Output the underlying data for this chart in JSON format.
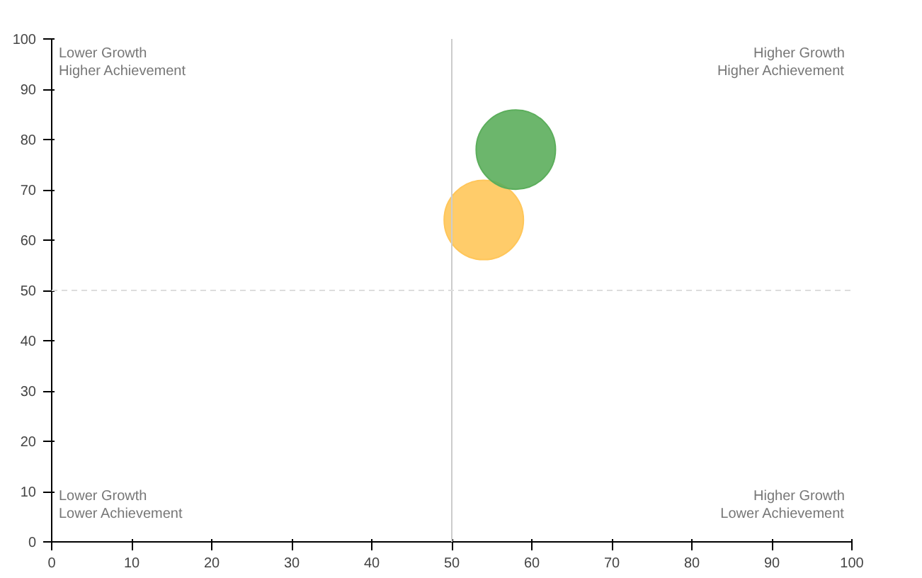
{
  "chart_data": {
    "type": "bubble",
    "series": [
      {
        "color": "#ffc65a",
        "x": [
          54
        ],
        "values": [
          64
        ],
        "sizes": [
          1
        ]
      },
      {
        "color": "#5cae5c",
        "x": [
          58
        ],
        "values": [
          78
        ],
        "sizes": [
          1
        ]
      }
    ],
    "xlim": [
      0,
      100
    ],
    "ylim": [
      0,
      100
    ],
    "xticks": [
      0,
      10,
      20,
      30,
      40,
      50,
      60,
      70,
      80,
      90,
      100
    ],
    "yticks": [
      0,
      10,
      20,
      30,
      40,
      50,
      60,
      70,
      80,
      90,
      100
    ],
    "ref_lines": [
      {
        "axis": "x",
        "value": 50,
        "color": "#cccccc",
        "line_style": "solid"
      },
      {
        "axis": "y",
        "value": 50,
        "color": "#dddddd",
        "line_style": "dashed"
      }
    ],
    "annotations": [
      "Lower Growth\nHigher Achievement",
      "Higher Growth\nHigher Achievement",
      "Lower Growth\nLower Achievement",
      "Higher Growth\nLower Achievement"
    ]
  }
}
